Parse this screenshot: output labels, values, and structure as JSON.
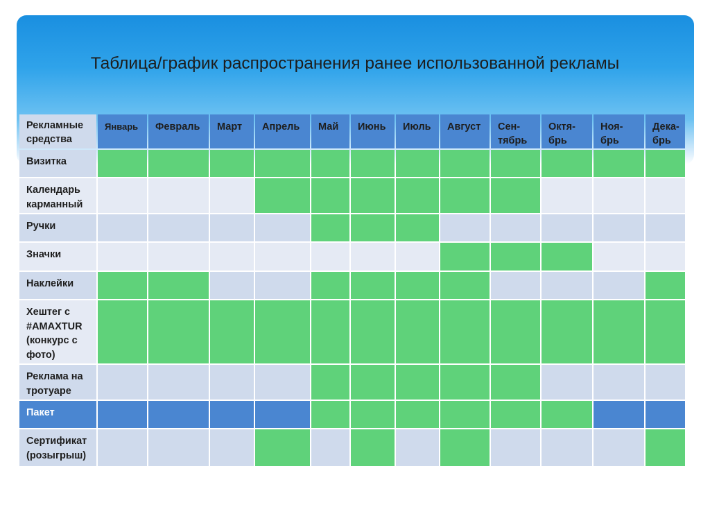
{
  "title": "Таблица/график распространения ранее использованной рекламы",
  "table": {
    "corner_label": "Рекламные средства",
    "months": [
      "Январь",
      "Февраль",
      "Март",
      "Апрель",
      "Май",
      "Июнь",
      "Июль",
      "Август",
      "Сен-тябрь",
      "Октя-брь",
      "Ноя-брь",
      "Дека-брь"
    ],
    "rows": [
      {
        "label": "Визитка",
        "active": [
          1,
          1,
          1,
          1,
          1,
          1,
          1,
          1,
          1,
          1,
          1,
          1
        ]
      },
      {
        "label": "Календарь карманный",
        "active": [
          0,
          0,
          0,
          1,
          1,
          1,
          1,
          1,
          1,
          0,
          0,
          0
        ]
      },
      {
        "label": "Ручки",
        "active": [
          0,
          0,
          0,
          0,
          1,
          1,
          1,
          0,
          0,
          0,
          0,
          0
        ]
      },
      {
        "label": "Значки",
        "active": [
          0,
          0,
          0,
          0,
          0,
          0,
          0,
          1,
          1,
          1,
          0,
          0
        ]
      },
      {
        "label": "Наклейки",
        "active": [
          1,
          1,
          0,
          0,
          1,
          1,
          1,
          1,
          0,
          0,
          0,
          1
        ]
      },
      {
        "label": "Хештег с #AMAXTUR (конкурс с фото)",
        "active": [
          1,
          1,
          1,
          1,
          1,
          1,
          1,
          1,
          1,
          1,
          1,
          1
        ]
      },
      {
        "label": "Реклама на тротуаре",
        "active": [
          0,
          0,
          0,
          0,
          1,
          1,
          1,
          1,
          1,
          0,
          0,
          0
        ]
      },
      {
        "label": "Пакет",
        "active": [
          0,
          0,
          0,
          0,
          1,
          1,
          1,
          1,
          1,
          1,
          0,
          0
        ],
        "style": "dark"
      },
      {
        "label": "Сертификат (розыгрыш)",
        "active": [
          0,
          0,
          0,
          1,
          0,
          1,
          0,
          1,
          0,
          0,
          0,
          1
        ]
      }
    ]
  },
  "colors": {
    "active": "#5fd27a",
    "header": "#4a86d1",
    "row_light": "#cfdaec",
    "row_lighter": "#e5eaf4"
  }
}
